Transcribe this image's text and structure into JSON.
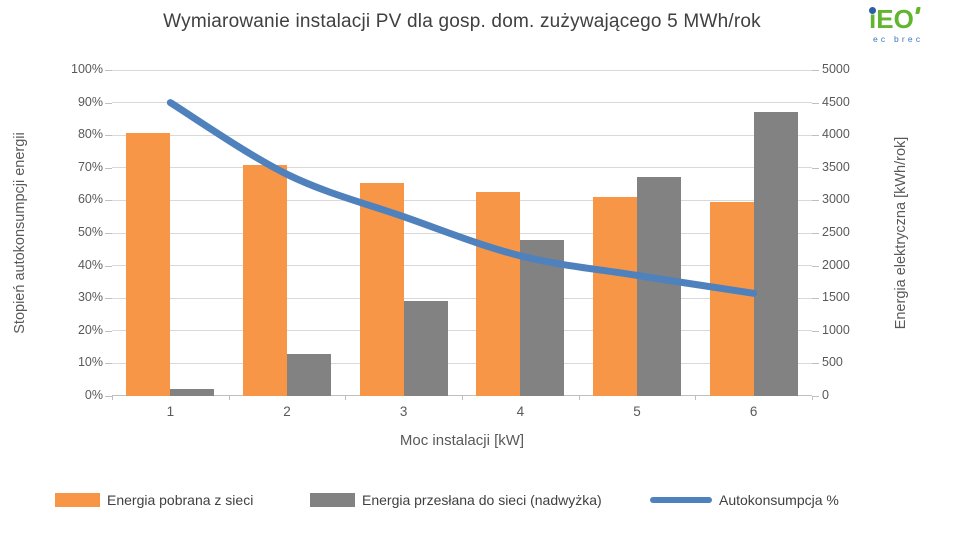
{
  "title": "Wymiarowanie instalacji PV dla gosp. dom. zużywającego 5 MWh/rok",
  "logo": {
    "i_char": "ı",
    "rest": "EO",
    "tagline": "ec brec",
    "green": "#62B52E",
    "blue": "#3A75BC"
  },
  "chart_data": {
    "type": "bar",
    "subtype": "combo-bar-line",
    "categories": [
      "1",
      "2",
      "3",
      "4",
      "5",
      "6"
    ],
    "xlabel": "Moc instalacji [kW]",
    "left_axis": {
      "label": "Stopień autokonsumpcji energii",
      "min": 0,
      "max": 100,
      "step": 10,
      "ticks": [
        "0%",
        "10%",
        "20%",
        "30%",
        "40%",
        "50%",
        "60%",
        "70%",
        "80%",
        "90%",
        "100%"
      ]
    },
    "right_axis": {
      "label": "Energia elektryczna [kWh/rok]",
      "min": 0,
      "max": 5000,
      "step": 500,
      "ticks": [
        "0",
        "500",
        "1000",
        "1500",
        "2000",
        "2500",
        "3000",
        "3500",
        "4000",
        "4500",
        "5000"
      ]
    },
    "series": [
      {
        "name": "Energia pobrana z sieci",
        "type": "bar",
        "axis": "right",
        "color": "#F79646",
        "values": [
          4030,
          3540,
          3270,
          3130,
          3050,
          2980
        ]
      },
      {
        "name": "Energia przesłana do sieci (nadwyżka)",
        "type": "bar",
        "axis": "right",
        "color": "#828282",
        "values": [
          100,
          650,
          1455,
          2390,
          3365,
          4350
        ]
      },
      {
        "name": "Autokonsumpcja %",
        "type": "line",
        "axis": "left",
        "color": "#4F81BD",
        "values": [
          90,
          68,
          55,
          43,
          37,
          31.5
        ]
      }
    ],
    "legend_position": "bottom",
    "grid": true,
    "gridline_color": "#D9D9D9",
    "axisline_color": "#BFBFBF"
  }
}
